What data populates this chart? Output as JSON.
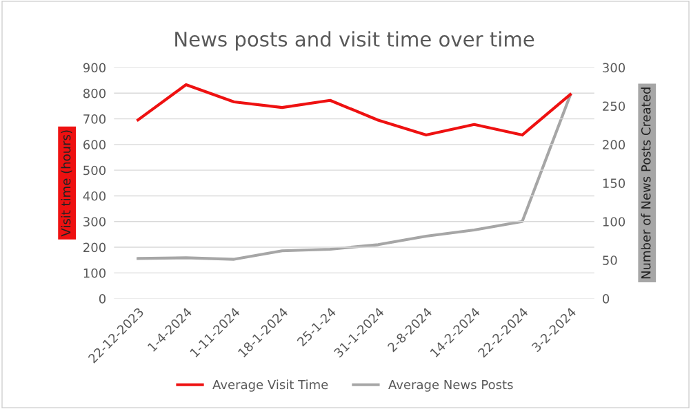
{
  "chart_data": {
    "type": "line",
    "title": "News posts and visit time over time",
    "ylabel": "Visit time (hours)",
    "y2label": "Number of News Posts Created",
    "categories": [
      "22-12-2023",
      "1-4-2024",
      "1-11-2024",
      "18-1-2024",
      "25-1-24",
      "31-1-2024",
      "2-8-2024",
      "14-2-2024",
      "22-2-2024",
      "3-2-2024"
    ],
    "series": [
      {
        "name": "Average Visit Time",
        "color": "#ee1111",
        "values": [
          696,
          833,
          766,
          744,
          772,
          695,
          637,
          678,
          637,
          795
        ]
      },
      {
        "name": "Average News Posts",
        "color": "#a6a6a6",
        "axis": "y2",
        "values": [
          52,
          53,
          51,
          62,
          64,
          70,
          81,
          89,
          100,
          264
        ]
      }
    ],
    "ylim": [
      0,
      900
    ],
    "yticks": [
      0,
      100,
      200,
      300,
      400,
      500,
      600,
      700,
      800,
      900
    ],
    "y2lim": [
      0,
      300
    ],
    "y2ticks": [
      0,
      50,
      100,
      150,
      200,
      250,
      300
    ],
    "grid": "y",
    "legend": "bottom",
    "marker": "none",
    "line_style": "solid"
  }
}
